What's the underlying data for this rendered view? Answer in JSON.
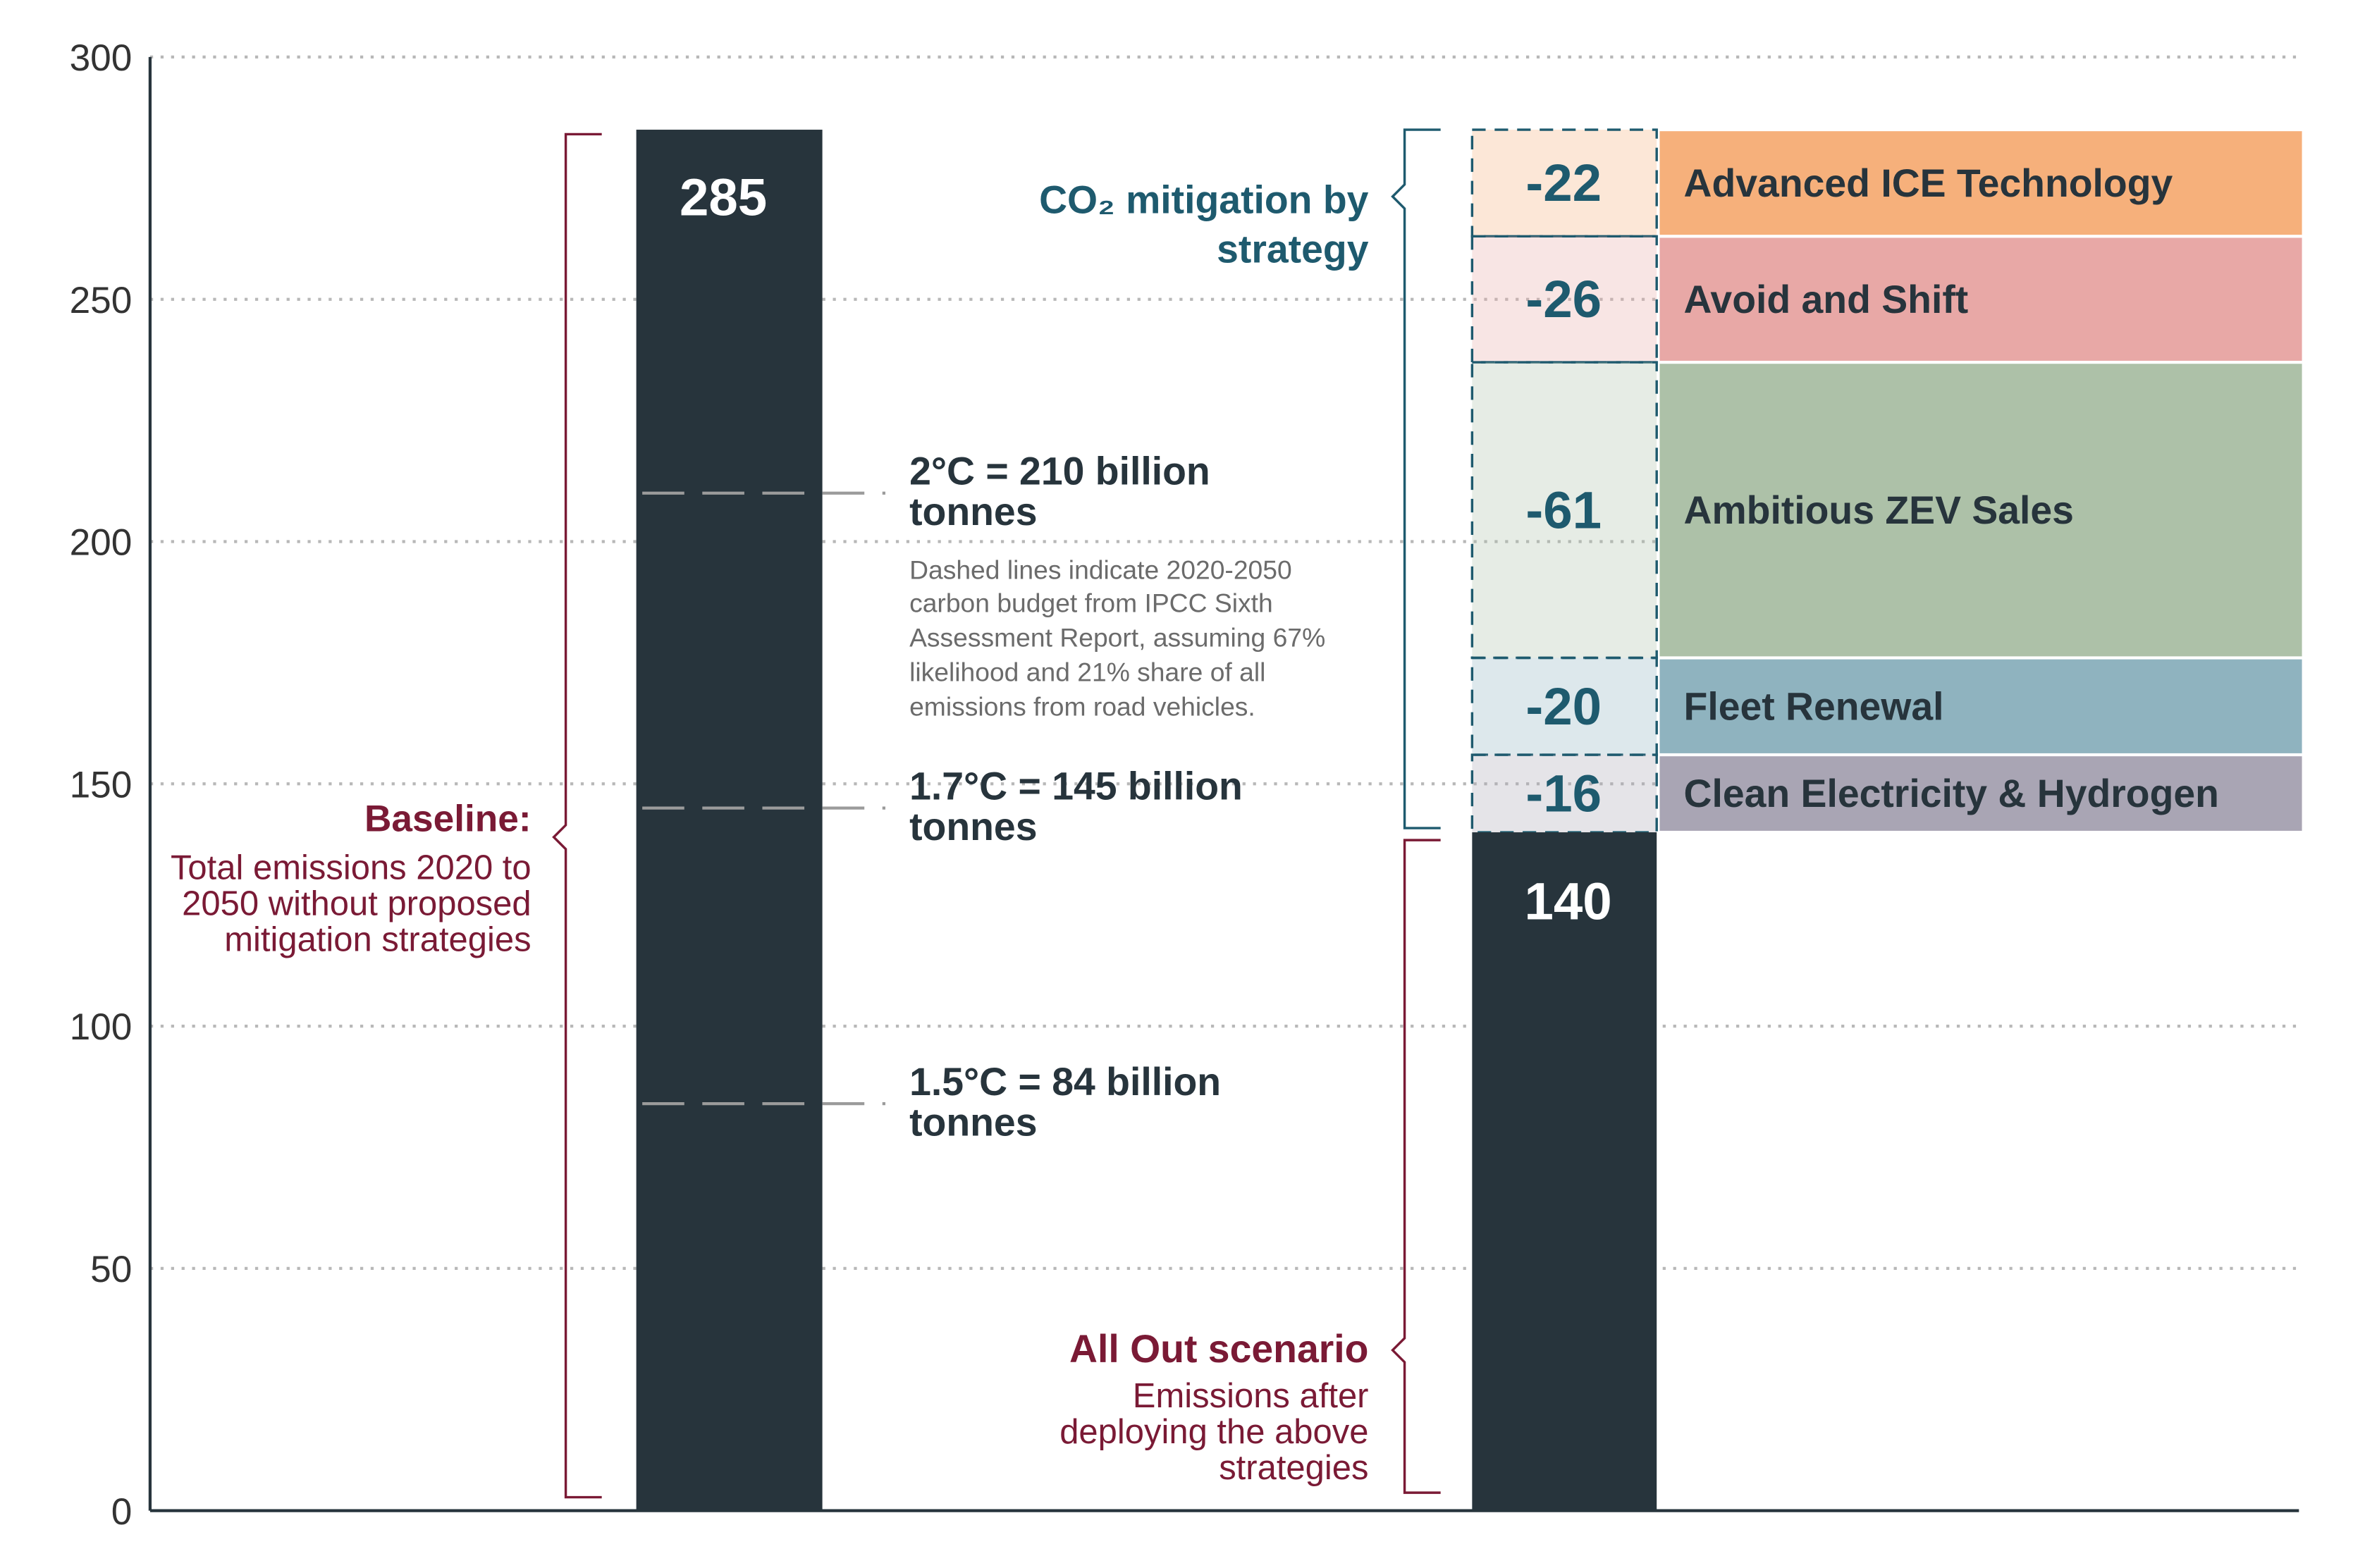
{
  "chart_data": {
    "type": "waterfall",
    "ylim": [
      0,
      300
    ],
    "yticks": [
      0,
      50,
      100,
      150,
      200,
      250,
      300
    ],
    "grid": true,
    "baseline": {
      "value": 285,
      "color": "#27343c",
      "title": "Baseline:",
      "text": "Total emissions 2020 to 2050 without proposed mitigation strategies"
    },
    "steps_label": "CO₂ mitigation by strategy",
    "series": [
      {
        "name": "Advanced ICE Technology",
        "color": "#f6b07b",
        "value": -22
      },
      {
        "name": "Avoid and Shift",
        "color": "#e8a8a6",
        "value": -26
      },
      {
        "name": "Ambitious ZEV Sales",
        "color": "#adc1a8",
        "value": -61
      },
      {
        "name": "Fleet Renewal",
        "color": "#8fb3bf",
        "value": -20
      },
      {
        "name": "Clean Electricity & Hydrogen",
        "color": "#a9a5b4",
        "value": -16
      }
    ],
    "total": {
      "value": 140,
      "color": "#27343c",
      "title": "All Out scenario",
      "text": "Emissions after deploying the above strategies"
    },
    "budgets": [
      {
        "value": 210,
        "label": "2°C = 210 billion tonnes"
      },
      {
        "value": 145,
        "label": "1.7°C = 145 billion tonnes"
      },
      {
        "value": 84,
        "label": "1.5°C = 84 billion tonnes"
      }
    ],
    "budget_note": "Dashed lines indicate 2020-2050 carbon budget from IPCC Sixth Assessment Report, assuming 67% likelihood and 21% share of all emissions from road vehicles."
  }
}
